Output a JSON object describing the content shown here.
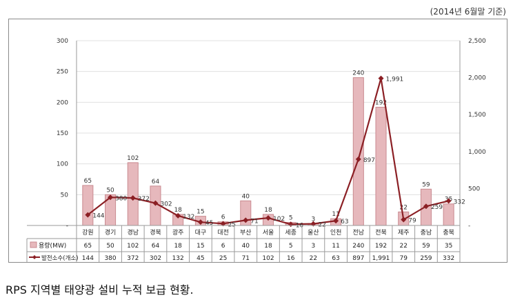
{
  "note": "(2014년 6월말 기준)",
  "caption": "RPS 지역별 태양광 설비 누적 보급 현황.",
  "colors": {
    "bar_fill": "#e6b8bc",
    "bar_edge": "#c98a90",
    "line": "#8b1f24",
    "grid": "#e0e0e0"
  },
  "chart_data": {
    "type": "bar",
    "title": "",
    "categories": [
      "강원",
      "경기",
      "경남",
      "경북",
      "광주",
      "대구",
      "대전",
      "부산",
      "서울",
      "세종",
      "울산",
      "인천",
      "전남",
      "전북",
      "제주",
      "충남",
      "충북"
    ],
    "left_axis": {
      "ylim": [
        0,
        300
      ],
      "ticks": [
        "-",
        "50",
        "100",
        "150",
        "200",
        "250",
        "300"
      ]
    },
    "right_axis": {
      "ylim": [
        0,
        2500
      ],
      "ticks": [
        "-",
        "500",
        "1,000",
        "1,500",
        "2,000",
        "2,500"
      ]
    },
    "series": [
      {
        "name": "용량(MW)",
        "type": "bar",
        "axis": "left",
        "values": [
          65,
          50,
          102,
          64,
          18,
          15,
          6,
          40,
          18,
          5,
          3,
          11,
          240,
          192,
          22,
          59,
          35
        ],
        "labels": [
          "65",
          "50",
          "102",
          "64",
          "18",
          "15",
          "6",
          "40",
          "18",
          "5",
          "3",
          "11",
          "240",
          "192",
          "22",
          "59",
          "35"
        ]
      },
      {
        "name": "발전소수(개소)",
        "type": "line",
        "axis": "right",
        "values": [
          144,
          380,
          372,
          302,
          132,
          45,
          25,
          71,
          102,
          16,
          22,
          63,
          897,
          1991,
          79,
          259,
          332
        ],
        "labels": [
          "144",
          "380",
          "372",
          "302",
          "132",
          "45",
          "25",
          "71",
          "102",
          "16",
          "22",
          "63",
          "897",
          "1,991",
          "79",
          "259",
          "332"
        ]
      }
    ],
    "grid": true,
    "legend": "bottom-table"
  }
}
